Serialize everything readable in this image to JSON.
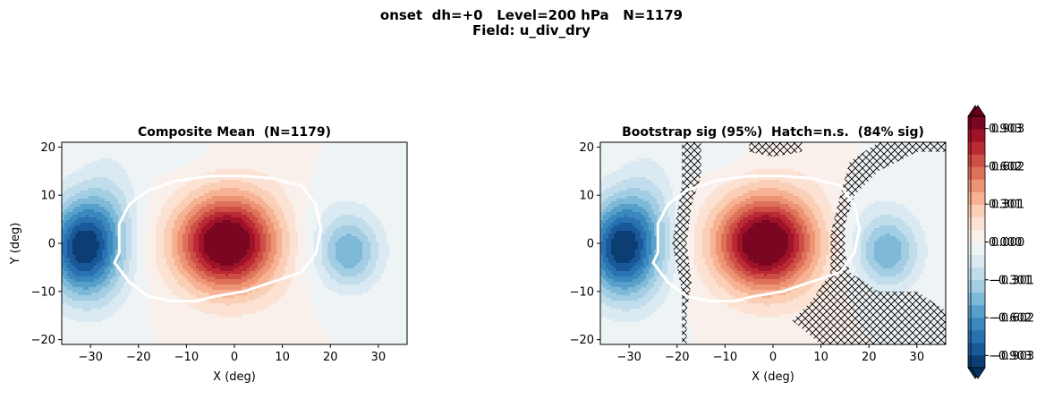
{
  "figure": {
    "title_line1": "onset  dh=+0   Level=200 hPa   N=1179",
    "title_line2": "Field: u_div_dry"
  },
  "chart_data": [
    {
      "type": "heatmap",
      "title": "Composite Mean  (N=1179)",
      "xlabel": "X (deg)",
      "ylabel": "Y (deg)",
      "xlim": [
        -36,
        36
      ],
      "ylim": [
        -21,
        21
      ],
      "xticks": [
        -30,
        -20,
        -10,
        0,
        10,
        20,
        30
      ],
      "yticks": [
        -20,
        -10,
        0,
        10,
        20
      ],
      "color_levels": [
        -1.0,
        1.0
      ],
      "colorbar_ticks": [
        "0.903",
        "0.602",
        "0.301",
        "0.000",
        "−0.301",
        "−0.602",
        "−0.903"
      ],
      "colorbar_values": [
        0.903,
        0.602,
        0.301,
        0.0,
        -0.301,
        -0.602,
        -0.903
      ],
      "colormap": "RdBu_r",
      "contour_color": "#ffffff",
      "hatching": false
    },
    {
      "type": "heatmap",
      "title": "Bootstrap sig (95%)  Hatch=n.s.  (84% sig)",
      "xlabel": "X (deg)",
      "ylabel": "",
      "xlim": [
        -36,
        36
      ],
      "ylim": [
        -21,
        21
      ],
      "xticks": [
        -30,
        -20,
        -10,
        0,
        10,
        20,
        30
      ],
      "yticks": [
        -20,
        -10,
        0,
        10,
        20
      ],
      "color_levels": [
        -1.0,
        1.0
      ],
      "colorbar_ticks": [
        "0.903",
        "0.602",
        "0.301",
        "0.000",
        "−0.301",
        "−0.602",
        "−0.903"
      ],
      "colorbar_values": [
        0.903,
        0.602,
        0.301,
        0.0,
        -0.301,
        -0.602,
        -0.903
      ],
      "colormap": "RdBu_r",
      "contour_color": "#ffffff",
      "hatching": true
    }
  ]
}
